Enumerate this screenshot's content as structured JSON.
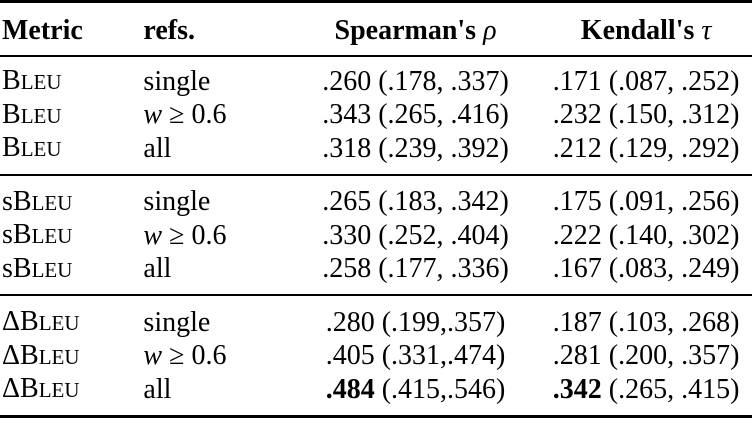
{
  "headers": {
    "metric": "Metric",
    "refs": "refs.",
    "spearman": "Spearman's ρ",
    "kendall": "Kendall's τ"
  },
  "sections": [
    {
      "rows": [
        {
          "metric_prefix": "",
          "metric_cap": "B",
          "metric_rest": "LEU",
          "refs": "single",
          "spearman_best": "",
          "spearman": ".260 (.178, .337)",
          "kendall_best": "",
          "kendall": ".171 (.087, .252)"
        },
        {
          "metric_prefix": "",
          "metric_cap": "B",
          "metric_rest": "LEU",
          "refs": "w ≥ 0.6",
          "spearman_best": "",
          "spearman": ".343 (.265, .416)",
          "kendall_best": "",
          "kendall": ".232 (.150, .312)"
        },
        {
          "metric_prefix": "",
          "metric_cap": "B",
          "metric_rest": "LEU",
          "refs": "all",
          "spearman_best": "",
          "spearman": ".318 (.239, .392)",
          "kendall_best": "",
          "kendall": ".212 (.129, .292)"
        }
      ]
    },
    {
      "rows": [
        {
          "metric_prefix": "s",
          "metric_cap": "B",
          "metric_rest": "LEU",
          "refs": "single",
          "spearman_best": "",
          "spearman": ".265 (.183, .342)",
          "kendall_best": "",
          "kendall": ".175 (.091, .256)"
        },
        {
          "metric_prefix": "s",
          "metric_cap": "B",
          "metric_rest": "LEU",
          "refs": "w ≥ 0.6",
          "spearman_best": "",
          "spearman": ".330 (.252, .404)",
          "kendall_best": "",
          "kendall": ".222 (.140, .302)"
        },
        {
          "metric_prefix": "s",
          "metric_cap": "B",
          "metric_rest": "LEU",
          "refs": "all",
          "spearman_best": "",
          "spearman": ".258 (.177, .336)",
          "kendall_best": "",
          "kendall": ".167 (.083, .249)"
        }
      ]
    },
    {
      "rows": [
        {
          "metric_prefix": "Δ",
          "metric_cap": "B",
          "metric_rest": "LEU",
          "refs": "single",
          "spearman_best": "",
          "spearman": ".280 (.199,.357)",
          "kendall_best": "",
          "kendall": ".187 (.103, .268)"
        },
        {
          "metric_prefix": "Δ",
          "metric_cap": "B",
          "metric_rest": "LEU",
          "refs": "w ≥ 0.6",
          "spearman_best": "",
          "spearman": ".405 (.331,.474)",
          "kendall_best": "",
          "kendall": ".281 (.200, .357)"
        },
        {
          "metric_prefix": "Δ",
          "metric_cap": "B",
          "metric_rest": "LEU",
          "refs": "all",
          "spearman_best": ".484",
          "spearman": " (.415,.546)",
          "kendall_best": ".342",
          "kendall": " (.265, .415)"
        }
      ]
    }
  ]
}
